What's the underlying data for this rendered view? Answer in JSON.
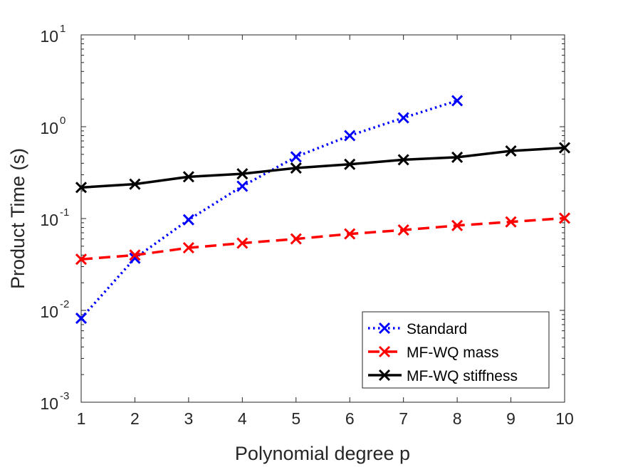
{
  "chart_data": {
    "type": "line",
    "title": "",
    "xlabel": "Polynomial degree p",
    "ylabel": "Product Time (s)",
    "xscale": "linear",
    "yscale": "log",
    "xlim": [
      1,
      10
    ],
    "ylim": [
      0.001,
      10
    ],
    "xticks": [
      "1",
      "2",
      "3",
      "4",
      "5",
      "6",
      "7",
      "8",
      "9",
      "10"
    ],
    "yticks": [
      {
        "base": "10",
        "exp": "-3"
      },
      {
        "base": "10",
        "exp": "-2"
      },
      {
        "base": "10",
        "exp": "-1"
      },
      {
        "base": "10",
        "exp": "0"
      },
      {
        "base": "10",
        "exp": "1"
      }
    ],
    "grid": false,
    "legend_position": "bottom-right",
    "series": [
      {
        "name": "Standard",
        "color": "#0000ff",
        "line_style": "dotted",
        "marker": "x",
        "x": [
          1,
          2,
          3,
          4,
          5,
          6,
          7,
          8
        ],
        "values": [
          0.0082,
          0.037,
          0.097,
          0.225,
          0.47,
          0.8,
          1.25,
          1.92
        ]
      },
      {
        "name": "MF-WQ mass",
        "color": "#ff0000",
        "line_style": "dashed",
        "marker": "x",
        "x": [
          1,
          2,
          3,
          4,
          5,
          6,
          7,
          8,
          9,
          10
        ],
        "values": [
          0.036,
          0.04,
          0.048,
          0.054,
          0.06,
          0.068,
          0.075,
          0.084,
          0.092,
          0.101
        ]
      },
      {
        "name": "MF-WQ stiffness",
        "color": "#000000",
        "line_style": "solid",
        "marker": "x",
        "x": [
          1,
          2,
          3,
          4,
          5,
          6,
          7,
          8,
          9,
          10
        ],
        "values": [
          0.218,
          0.237,
          0.285,
          0.307,
          0.355,
          0.39,
          0.437,
          0.465,
          0.545,
          0.59
        ]
      }
    ]
  }
}
